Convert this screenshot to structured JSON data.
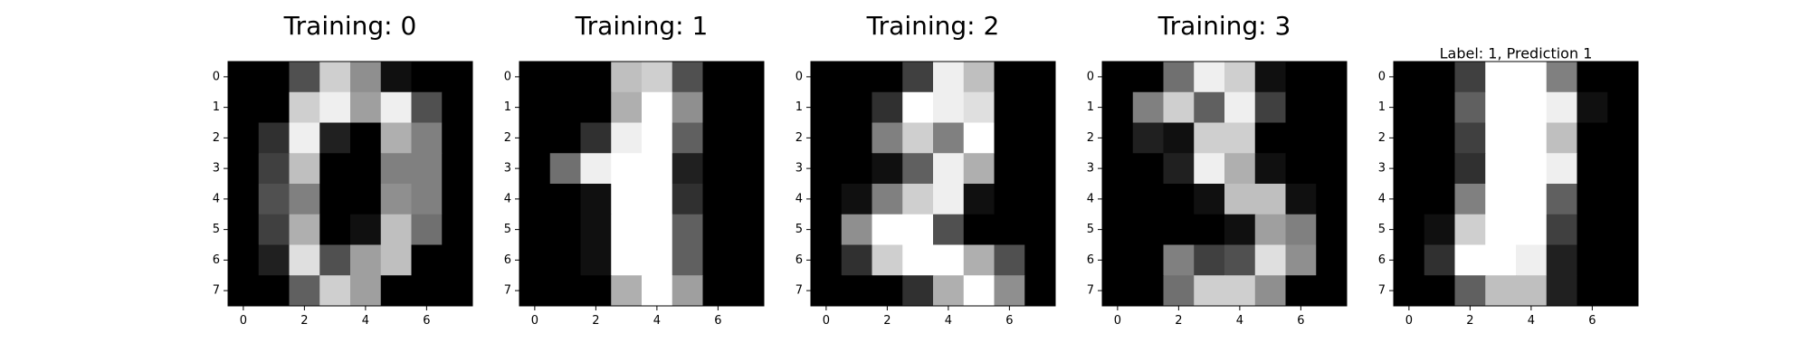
{
  "chart_data": [
    {
      "type": "heatmap",
      "title": "Training: 0",
      "xticks": [
        0,
        2,
        4,
        6
      ],
      "yticks": [
        0,
        1,
        2,
        3,
        4,
        5,
        6,
        7
      ],
      "colormap": "gray",
      "vmin": 0,
      "vmax": 16,
      "values": [
        [
          0,
          0,
          5,
          13,
          9,
          1,
          0,
          0
        ],
        [
          0,
          0,
          13,
          15,
          10,
          15,
          5,
          0
        ],
        [
          0,
          3,
          15,
          2,
          0,
          11,
          8,
          0
        ],
        [
          0,
          4,
          12,
          0,
          0,
          8,
          8,
          0
        ],
        [
          0,
          5,
          8,
          0,
          0,
          9,
          8,
          0
        ],
        [
          0,
          4,
          11,
          0,
          1,
          12,
          7,
          0
        ],
        [
          0,
          2,
          14,
          5,
          10,
          12,
          0,
          0
        ],
        [
          0,
          0,
          6,
          13,
          10,
          0,
          0,
          0
        ]
      ]
    },
    {
      "type": "heatmap",
      "title": "Training: 1",
      "xticks": [
        0,
        2,
        4,
        6
      ],
      "yticks": [
        0,
        1,
        2,
        3,
        4,
        5,
        6,
        7
      ],
      "colormap": "gray",
      "vmin": 0,
      "vmax": 16,
      "values": [
        [
          0,
          0,
          0,
          12,
          13,
          5,
          0,
          0
        ],
        [
          0,
          0,
          0,
          11,
          16,
          9,
          0,
          0
        ],
        [
          0,
          0,
          3,
          15,
          16,
          6,
          0,
          0
        ],
        [
          0,
          7,
          15,
          16,
          16,
          2,
          0,
          0
        ],
        [
          0,
          0,
          1,
          16,
          16,
          3,
          0,
          0
        ],
        [
          0,
          0,
          1,
          16,
          16,
          6,
          0,
          0
        ],
        [
          0,
          0,
          1,
          16,
          16,
          6,
          0,
          0
        ],
        [
          0,
          0,
          0,
          11,
          16,
          10,
          0,
          0
        ]
      ]
    },
    {
      "type": "heatmap",
      "title": "Training: 2",
      "xticks": [
        0,
        2,
        4,
        6
      ],
      "yticks": [
        0,
        1,
        2,
        3,
        4,
        5,
        6,
        7
      ],
      "colormap": "gray",
      "vmin": 0,
      "vmax": 16,
      "values": [
        [
          0,
          0,
          0,
          4,
          15,
          12,
          0,
          0
        ],
        [
          0,
          0,
          3,
          16,
          15,
          14,
          0,
          0
        ],
        [
          0,
          0,
          8,
          13,
          8,
          16,
          0,
          0
        ],
        [
          0,
          0,
          1,
          6,
          15,
          11,
          0,
          0
        ],
        [
          0,
          1,
          8,
          13,
          15,
          1,
          0,
          0
        ],
        [
          0,
          9,
          16,
          16,
          5,
          0,
          0,
          0
        ],
        [
          0,
          3,
          13,
          16,
          16,
          11,
          5,
          0
        ],
        [
          0,
          0,
          0,
          3,
          11,
          16,
          9,
          0
        ]
      ]
    },
    {
      "type": "heatmap",
      "title": "Training: 3",
      "xticks": [
        0,
        2,
        4,
        6
      ],
      "yticks": [
        0,
        1,
        2,
        3,
        4,
        5,
        6,
        7
      ],
      "colormap": "gray",
      "vmin": 0,
      "vmax": 16,
      "values": [
        [
          0,
          0,
          7,
          15,
          13,
          1,
          0,
          0
        ],
        [
          0,
          8,
          13,
          6,
          15,
          4,
          0,
          0
        ],
        [
          0,
          2,
          1,
          13,
          13,
          0,
          0,
          0
        ],
        [
          0,
          0,
          2,
          15,
          11,
          1,
          0,
          0
        ],
        [
          0,
          0,
          0,
          1,
          12,
          12,
          1,
          0
        ],
        [
          0,
          0,
          0,
          0,
          1,
          10,
          8,
          0
        ],
        [
          0,
          0,
          8,
          4,
          5,
          14,
          9,
          0
        ],
        [
          0,
          0,
          7,
          13,
          13,
          9,
          0,
          0
        ]
      ]
    },
    {
      "type": "heatmap",
      "title": "Label: 1, Prediction 1",
      "xticks": [
        0,
        2,
        4,
        6
      ],
      "yticks": [
        0,
        1,
        2,
        3,
        4,
        5,
        6,
        7
      ],
      "colormap": "gray",
      "vmin": 0,
      "vmax": 16,
      "values": [
        [
          0,
          0,
          4,
          16,
          16,
          8,
          0,
          0
        ],
        [
          0,
          0,
          6,
          16,
          16,
          15,
          1,
          0
        ],
        [
          0,
          0,
          4,
          16,
          16,
          12,
          0,
          0
        ],
        [
          0,
          0,
          3,
          16,
          16,
          15,
          0,
          0
        ],
        [
          0,
          0,
          8,
          16,
          16,
          6,
          0,
          0
        ],
        [
          0,
          1,
          13,
          16,
          16,
          4,
          0,
          0
        ],
        [
          0,
          3,
          16,
          16,
          15,
          2,
          0,
          0
        ],
        [
          0,
          0,
          6,
          12,
          12,
          2,
          0,
          0
        ]
      ]
    }
  ]
}
